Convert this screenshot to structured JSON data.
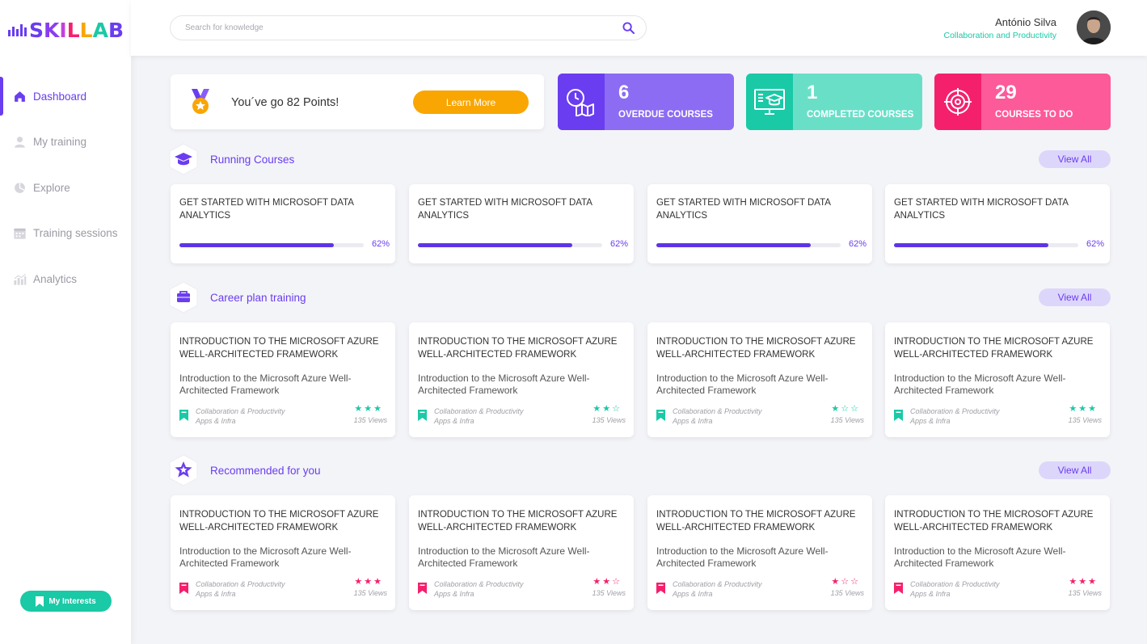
{
  "app": {
    "logo": "SKILLAB"
  },
  "sidebar": {
    "items": [
      {
        "label": "Dashboard",
        "icon": "home-icon",
        "active": true
      },
      {
        "label": "My training",
        "icon": "user-icon",
        "active": false
      },
      {
        "label": "Explore",
        "icon": "explore-icon",
        "active": false
      },
      {
        "label": "Training sessions",
        "icon": "calendar-icon",
        "active": false
      },
      {
        "label": "Analytics",
        "icon": "analytics-icon",
        "active": false
      }
    ],
    "interests_label": "My Interests"
  },
  "header": {
    "search_placeholder": "Search for knowledge",
    "user_name": "António Silva",
    "user_role": "Collaboration and Productivity"
  },
  "points": {
    "text": "You´ve go 82 Points!",
    "button": "Learn More"
  },
  "stats": [
    {
      "number": "6",
      "label": "OVERDUE COURSES",
      "color": "#8c6cf3",
      "icon_bg": "#6a3df0"
    },
    {
      "number": "1",
      "label": "COMPLETED COURSES",
      "color": "#6adfc8",
      "icon_bg": "#1ac9a6"
    },
    {
      "number": "29",
      "label": "COURSES TO DO",
      "color": "#fd5a9a",
      "icon_bg": "#f5206c"
    }
  ],
  "sections": {
    "running": {
      "title": "Running Courses",
      "view_all": "View All"
    },
    "career": {
      "title": "Career plan training",
      "view_all": "View All"
    },
    "recommended": {
      "title": "Recommended for you",
      "view_all": "View All"
    }
  },
  "running_courses": [
    {
      "title": "GET STARTED WITH MICROSOFT DATA ANALYTICS",
      "progress": 62,
      "progress_label": "62%"
    },
    {
      "title": "GET STARTED WITH MICROSOFT DATA ANALYTICS",
      "progress": 62,
      "progress_label": "62%"
    },
    {
      "title": "GET STARTED WITH MICROSOFT DATA ANALYTICS",
      "progress": 62,
      "progress_label": "62%"
    },
    {
      "title": "GET STARTED WITH MICROSOFT DATA ANALYTICS",
      "progress": 62,
      "progress_label": "62%"
    }
  ],
  "career_courses": [
    {
      "title": "INTRODUCTION TO THE MICROSOFT AZURE WELL-ARCHITECTED FRAMEWORK",
      "desc": "Introduction to the Microsoft Azure Well-Architected Framework",
      "cat1": "Collaboration & Productivity",
      "cat2": "Apps & Infra",
      "rating": 3,
      "views": "135 Views"
    },
    {
      "title": "INTRODUCTION TO THE MICROSOFT AZURE WELL-ARCHITECTED FRAMEWORK",
      "desc": "Introduction to the Microsoft Azure Well-Architected Framework",
      "cat1": "Collaboration & Productivity",
      "cat2": "Apps & Infra",
      "rating": 2,
      "views": "135 Views"
    },
    {
      "title": "INTRODUCTION TO THE MICROSOFT AZURE WELL-ARCHITECTED FRAMEWORK",
      "desc": "Introduction to the Microsoft Azure Well-Architected Framework",
      "cat1": "Collaboration & Productivity",
      "cat2": "Apps & Infra",
      "rating": 1,
      "views": "135 Views"
    },
    {
      "title": "INTRODUCTION TO THE MICROSOFT AZURE WELL-ARCHITECTED FRAMEWORK",
      "desc": "Introduction to the Microsoft Azure Well-Architected Framework",
      "cat1": "Collaboration & Productivity",
      "cat2": "Apps & Infra",
      "rating": 3,
      "views": "135 Views"
    }
  ],
  "recommended_courses": [
    {
      "title": "INTRODUCTION TO THE MICROSOFT AZURE WELL-ARCHITECTED FRAMEWORK",
      "desc": "Introduction to the Microsoft Azure Well-Architected Framework",
      "cat1": "Collaboration & Productivity",
      "cat2": "Apps & Infra",
      "rating": 3,
      "views": "135 Views"
    },
    {
      "title": "INTRODUCTION TO THE MICROSOFT AZURE WELL-ARCHITECTED FRAMEWORK",
      "desc": "Introduction to the Microsoft Azure Well-Architected Framework",
      "cat1": "Collaboration & Productivity",
      "cat2": "Apps & Infra",
      "rating": 2,
      "views": "135 Views"
    },
    {
      "title": "INTRODUCTION TO THE MICROSOFT AZURE WELL-ARCHITECTED FRAMEWORK",
      "desc": "Introduction to the Microsoft Azure Well-Architected Framework",
      "cat1": "Collaboration & Productivity",
      "cat2": "Apps & Infra",
      "rating": 1,
      "views": "135 Views"
    },
    {
      "title": "INTRODUCTION TO THE MICROSOFT AZURE WELL-ARCHITECTED FRAMEWORK",
      "desc": "Introduction to the Microsoft Azure Well-Architected Framework",
      "cat1": "Collaboration & Productivity",
      "cat2": "Apps & Infra",
      "rating": 3,
      "views": "135 Views"
    }
  ],
  "colors": {
    "accent": "#6a3df0",
    "teal": "#1ac9a6",
    "pink": "#f5206c",
    "orange": "#f9a602"
  }
}
